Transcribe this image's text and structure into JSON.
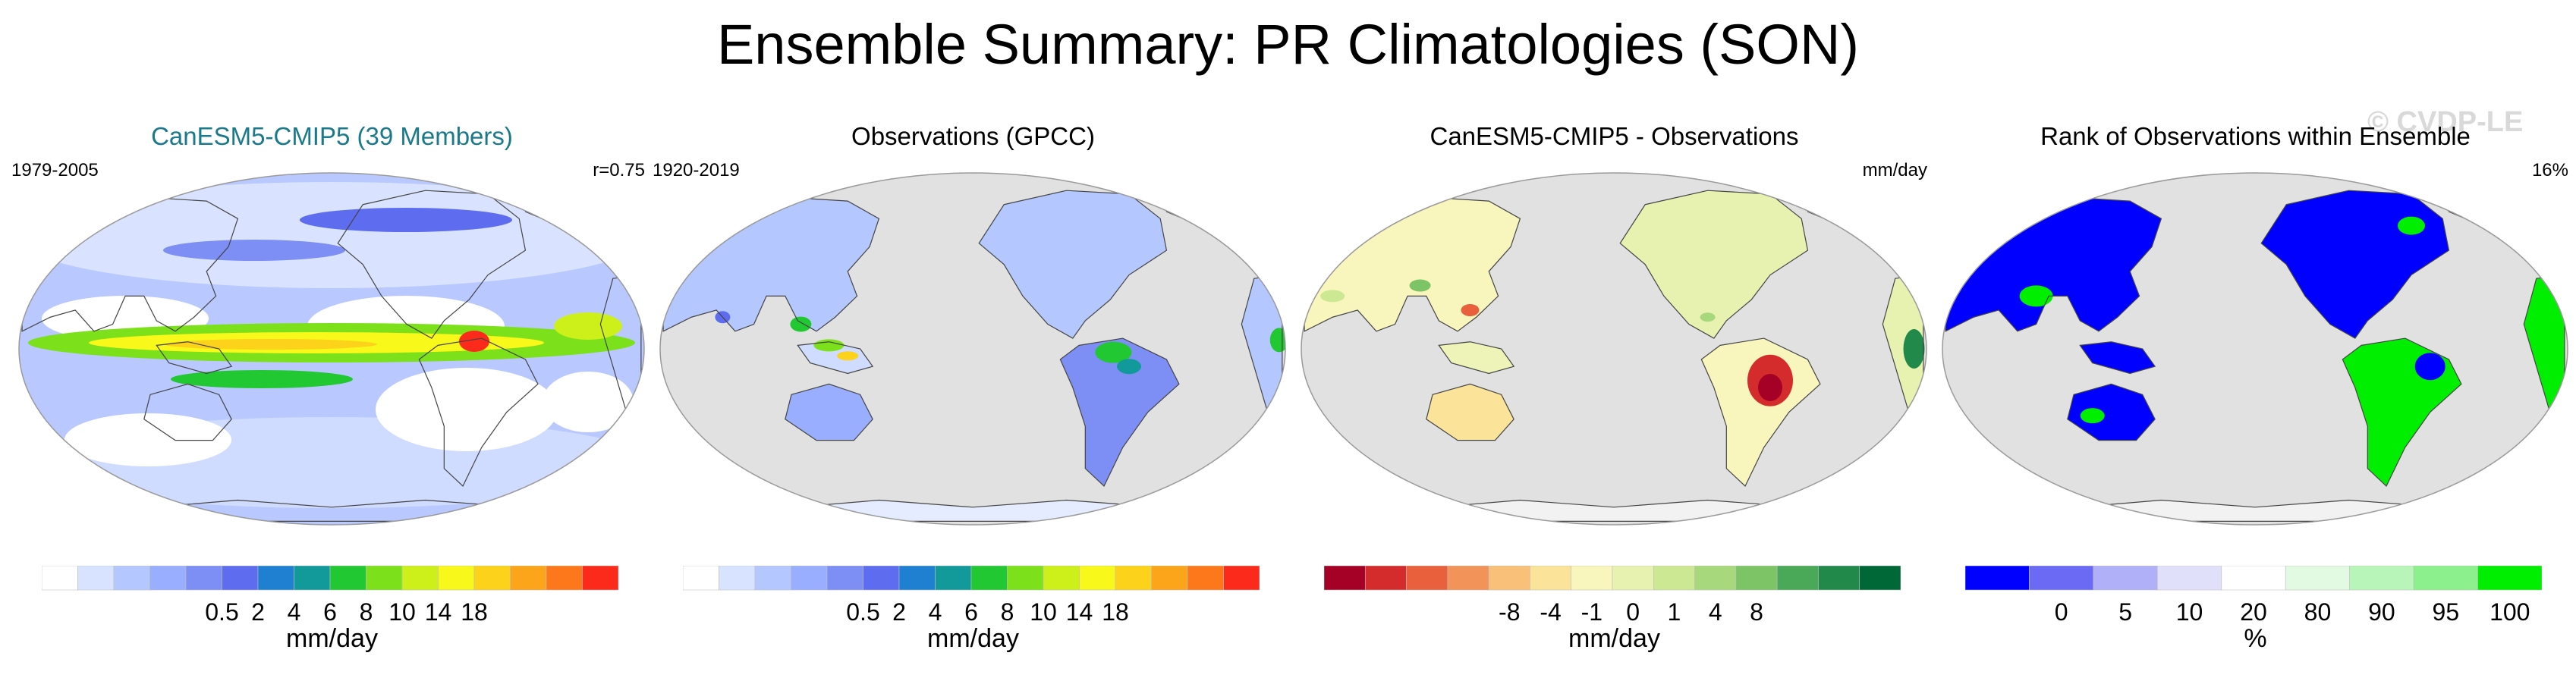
{
  "title": "Ensemble Summary: PR Climatologies (SON)",
  "watermark": "© CVDP-LE",
  "colors": {
    "ocean_gray": "#e1e1e1",
    "land_outline": "#444444",
    "model_title": "#1a7a8c"
  },
  "panels": [
    {
      "title": "CanESM5-CMIP5 (39 Members)",
      "left_text": "1979-2005",
      "right_text": "r=0.75",
      "kind": "model",
      "colorbar": {
        "colors": [
          "#ffffff",
          "#d7e3ff",
          "#b4c8ff",
          "#9aaeff",
          "#7d8ef5",
          "#5e6cf0",
          "#1f7fd1",
          "#129a9a",
          "#22c832",
          "#7ce01a",
          "#cdf01a",
          "#f8f81a",
          "#fcd21a",
          "#fca51a",
          "#fc781a",
          "#fc2a1a"
        ],
        "ticks": [
          "0.5",
          "2",
          "4",
          "6",
          "8",
          "10",
          "14",
          "18"
        ],
        "label": "mm/day"
      }
    },
    {
      "title": "Observations (GPCC)",
      "left_text": "1920-2019",
      "right_text": "",
      "kind": "obs",
      "colorbar": {
        "colors": [
          "#ffffff",
          "#d7e3ff",
          "#b4c8ff",
          "#9aaeff",
          "#7d8ef5",
          "#5e6cf0",
          "#1f7fd1",
          "#129a9a",
          "#22c832",
          "#7ce01a",
          "#cdf01a",
          "#f8f81a",
          "#fcd21a",
          "#fca51a",
          "#fc781a",
          "#fc2a1a"
        ],
        "ticks": [
          "0.5",
          "2",
          "4",
          "6",
          "8",
          "10",
          "14",
          "18"
        ],
        "label": "mm/day"
      }
    },
    {
      "title": "CanESM5-CMIP5 - Observations",
      "left_text": "",
      "right_text": "mm/day",
      "kind": "diff",
      "colorbar": {
        "colors": [
          "#a50026",
          "#d42c2c",
          "#e8603c",
          "#f2935a",
          "#f9c07a",
          "#fbe39a",
          "#f8f6bd",
          "#e8f2b0",
          "#cce892",
          "#a8d87c",
          "#7cc466",
          "#4aa958",
          "#21894a",
          "#006837"
        ],
        "ticks": [
          "-8",
          "-4",
          "-1",
          "0",
          "1",
          "4",
          "8"
        ],
        "label": "mm/day"
      }
    },
    {
      "title": "Rank of Observations within Ensemble",
      "left_text": "",
      "right_text": "16%",
      "kind": "rank",
      "colorbar": {
        "colors": [
          "#0000ff",
          "#6a6af5",
          "#b0b0f8",
          "#e0e0fb",
          "#ffffff",
          "#e2fae2",
          "#b8f5b8",
          "#8cf08c",
          "#00ef00"
        ],
        "ticks": [
          "0",
          "5",
          "10",
          "20",
          "80",
          "90",
          "95",
          "100"
        ],
        "label": "%"
      }
    }
  ]
}
